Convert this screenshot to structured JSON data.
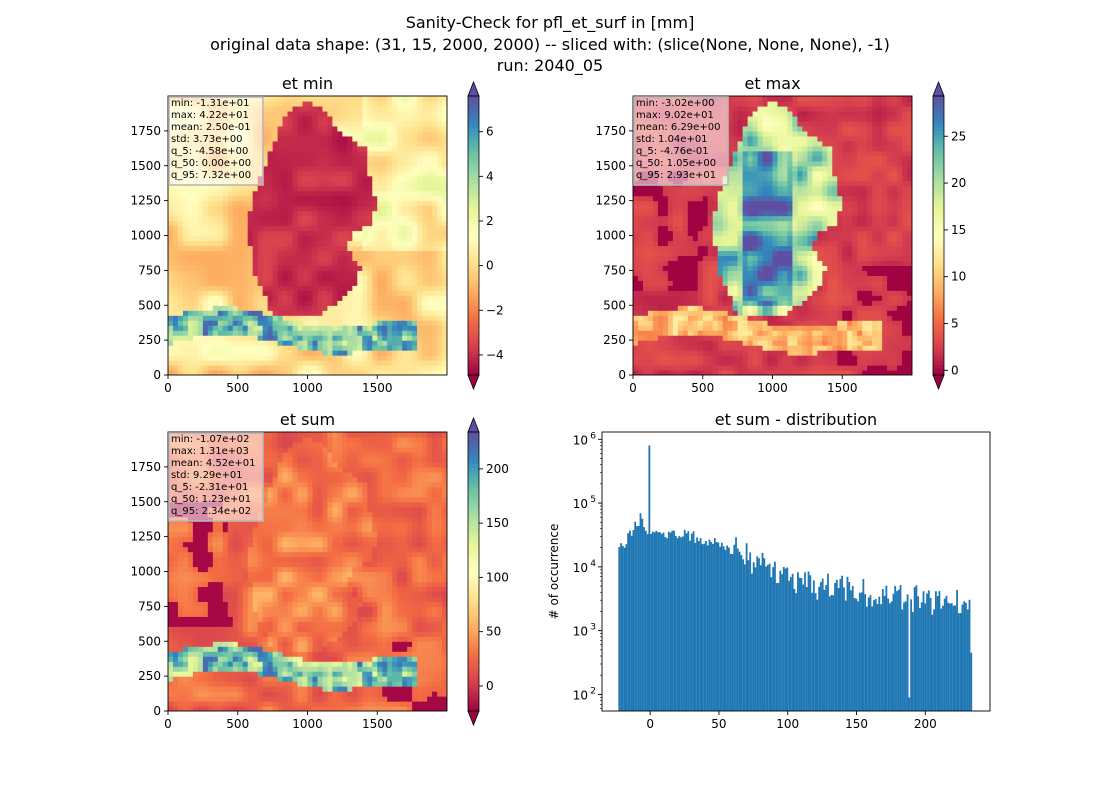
{
  "figure": {
    "title_lines": [
      "Sanity-Check for pfl_et_surf in [mm]",
      "original data shape: (31, 15, 2000, 2000) -- sliced with: (slice(None, None, None), -1)",
      "run: 2040_05"
    ]
  },
  "colors": {
    "hist_bar": "#1f77b4",
    "colormap": "Spectral",
    "spectral_stops": [
      "#9e0142",
      "#d53e4f",
      "#f46d43",
      "#fdae61",
      "#fee08b",
      "#ffffbf",
      "#e6f598",
      "#abdda4",
      "#66c2a5",
      "#3288bd",
      "#5e4fa2"
    ]
  },
  "chart_data": [
    {
      "type": "heatmap",
      "title": "et min",
      "xlim": [
        0,
        2000
      ],
      "ylim": [
        0,
        2000
      ],
      "xticks": [
        0,
        500,
        1000,
        1500
      ],
      "yticks": [
        0,
        250,
        500,
        750,
        1000,
        1250,
        1500,
        1750
      ],
      "colorbar": {
        "vmin": -4.9,
        "vmax": 7.6,
        "ticks": [
          -4,
          -2,
          0,
          2,
          4,
          6
        ],
        "tick_labels": [
          "−4",
          "−2",
          "0",
          "2",
          "4",
          "6"
        ],
        "extend": "both"
      },
      "stats": [
        "min: -1.31e+01",
        "max: 4.22e+01",
        "mean: 2.50e-01",
        "std: 3.73e+00",
        "q_5: -4.58e+00",
        "q_50: 0.00e+00",
        "q_95: 7.32e+00"
      ]
    },
    {
      "type": "heatmap",
      "title": "et max",
      "xlim": [
        0,
        2000
      ],
      "ylim": [
        0,
        2000
      ],
      "xticks": [
        0,
        500,
        1000,
        1500
      ],
      "yticks": [
        0,
        250,
        500,
        750,
        1000,
        1250,
        1500,
        1750
      ],
      "colorbar": {
        "vmin": -0.5,
        "vmax": 29.3,
        "ticks": [
          0,
          5,
          10,
          15,
          20,
          25
        ],
        "tick_labels": [
          "0",
          "5",
          "10",
          "15",
          "20",
          "25"
        ],
        "extend": "both"
      },
      "stats": [
        "min: -3.02e+00",
        "max: 9.02e+01",
        "mean: 6.29e+00",
        "std: 1.04e+01",
        "q_5: -4.76e-01",
        "q_50: 1.05e+00",
        "q_95: 2.93e+01"
      ]
    },
    {
      "type": "heatmap",
      "title": "et sum",
      "xlim": [
        0,
        2000
      ],
      "ylim": [
        0,
        2000
      ],
      "xticks": [
        0,
        500,
        1000,
        1500
      ],
      "yticks": [
        0,
        250,
        500,
        750,
        1000,
        1250,
        1500,
        1750
      ],
      "colorbar": {
        "vmin": -23.1,
        "vmax": 234,
        "ticks": [
          0,
          50,
          100,
          150,
          200
        ],
        "tick_labels": [
          "0",
          "50",
          "100",
          "150",
          "200"
        ],
        "extend": "both"
      },
      "stats": [
        "min: -1.07e+02",
        "max: 1.31e+03",
        "mean: 4.52e+01",
        "std: 9.29e+01",
        "q_5: -2.31e+01",
        "q_50: 1.23e+01",
        "q_95: 2.34e+02"
      ]
    },
    {
      "type": "bar",
      "title": "et sum - distribution",
      "xlabel": "",
      "ylabel": "# of occurrence",
      "xlim": [
        -35,
        247
      ],
      "ylim": [
        55,
        1300000
      ],
      "yscale": "log",
      "xticks": [
        0,
        50,
        100,
        150,
        200
      ],
      "yticks": [
        100,
        1000,
        10000,
        100000,
        1000000
      ],
      "ytick_labels": [
        {
          "base": "10",
          "exp": "2"
        },
        {
          "base": "10",
          "exp": "3"
        },
        {
          "base": "10",
          "exp": "4"
        },
        {
          "base": "10",
          "exp": "5"
        },
        {
          "base": "10",
          "exp": "6"
        }
      ],
      "bins": {
        "start": -23.1,
        "end": 234,
        "count": 200
      },
      "profile": [
        [
          -23.1,
          19000
        ],
        [
          -20,
          22000
        ],
        [
          -15,
          30000
        ],
        [
          -10,
          45000
        ],
        [
          -7,
          60000
        ],
        [
          -4,
          40000
        ],
        [
          0,
          36000
        ],
        [
          10,
          34000
        ],
        [
          20,
          32000
        ],
        [
          30,
          30000
        ],
        [
          40,
          27000
        ],
        [
          50,
          23000
        ],
        [
          60,
          19000
        ],
        [
          70,
          14500
        ],
        [
          80,
          10500
        ],
        [
          90,
          8000
        ],
        [
          100,
          6200
        ],
        [
          120,
          5000
        ],
        [
          140,
          4400
        ],
        [
          160,
          3900
        ],
        [
          180,
          3400
        ],
        [
          200,
          3000
        ],
        [
          220,
          2700
        ],
        [
          234,
          2200
        ]
      ],
      "spikes": [
        {
          "x": -0.5,
          "value": 800000
        },
        {
          "x": 188,
          "value": 90
        },
        {
          "x": 233.5,
          "value": 450
        }
      ]
    }
  ]
}
